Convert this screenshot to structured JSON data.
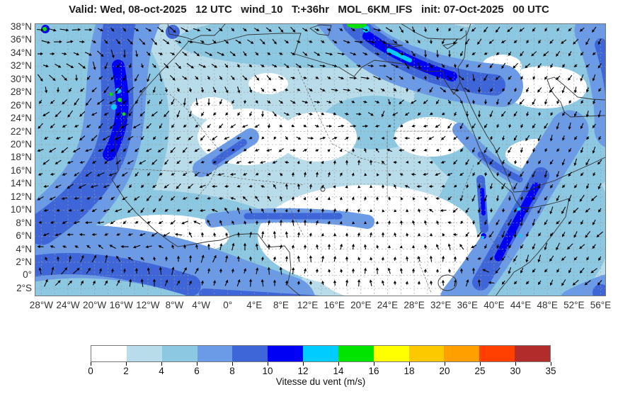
{
  "title": "Valid: Wed, 08-oct-2025   12 UTC   wind_10   T:+36hr   MOL_6KM_IFS   init: 07-Oct-2025   00 UTC",
  "map": {
    "lat_labels": [
      "38°N",
      "36°N",
      "34°N",
      "32°N",
      "30°N",
      "28°N",
      "26°N",
      "24°N",
      "22°N",
      "20°N",
      "18°N",
      "16°N",
      "14°N",
      "12°N",
      "10°N",
      "8°N",
      "6°N",
      "4°N",
      "2°N",
      "0°",
      "2°S"
    ],
    "lon_labels": [
      "28°W",
      "24°W",
      "20°W",
      "16°W",
      "12°W",
      "8°W",
      "4°W",
      "0°",
      "4°E",
      "8°E",
      "12°E",
      "16°E",
      "20°E",
      "24°E",
      "28°E",
      "32°E",
      "36°E",
      "40°E",
      "44°E",
      "48°E",
      "52°E",
      "56°E"
    ],
    "wind_flow": [
      [
        40,
        20,
        0,
        12
      ],
      [
        210,
        30,
        -25,
        12
      ],
      [
        110,
        110,
        217,
        13
      ],
      [
        60,
        210,
        205,
        12
      ],
      [
        40,
        280,
        195,
        7
      ],
      [
        60,
        355,
        48,
        13
      ],
      [
        230,
        370,
        65,
        12
      ],
      [
        330,
        330,
        85,
        11
      ],
      [
        470,
        350,
        95,
        10
      ],
      [
        590,
        370,
        80,
        10
      ],
      [
        300,
        180,
        205,
        7
      ],
      [
        380,
        120,
        -20,
        8
      ],
      [
        480,
        60,
        -10,
        13
      ],
      [
        590,
        95,
        -5,
        12
      ],
      [
        640,
        40,
        215,
        9
      ],
      [
        760,
        50,
        225,
        10
      ],
      [
        800,
        160,
        240,
        10
      ],
      [
        770,
        280,
        230,
        12
      ],
      [
        690,
        310,
        250,
        11
      ],
      [
        640,
        250,
        265,
        10
      ],
      [
        540,
        200,
        185,
        6
      ],
      [
        560,
        120,
        200,
        7
      ],
      [
        430,
        250,
        60,
        5
      ],
      [
        820,
        370,
        225,
        11
      ],
      [
        160,
        250,
        230,
        9
      ],
      [
        700,
        180,
        250,
        9
      ],
      [
        770,
        110,
        255,
        9
      ],
      [
        470,
        250,
        90,
        4
      ],
      [
        520,
        300,
        90,
        5
      ]
    ]
  },
  "colorbar": {
    "label": "Vitesse du vent (m/s)",
    "tick_labels": [
      "0",
      "2",
      "4",
      "6",
      "8",
      "10",
      "12",
      "14",
      "16",
      "18",
      "20",
      "25",
      "30",
      "35"
    ],
    "segment_colors": [
      "#ffffff",
      "#b9dcea",
      "#8cc8e2",
      "#6b9be6",
      "#3f66d8",
      "#0000f5",
      "#00ccff",
      "#00e400",
      "#ffff00",
      "#fcc800",
      "#ffa000",
      "#ff4000",
      "#b22c2c"
    ]
  }
}
